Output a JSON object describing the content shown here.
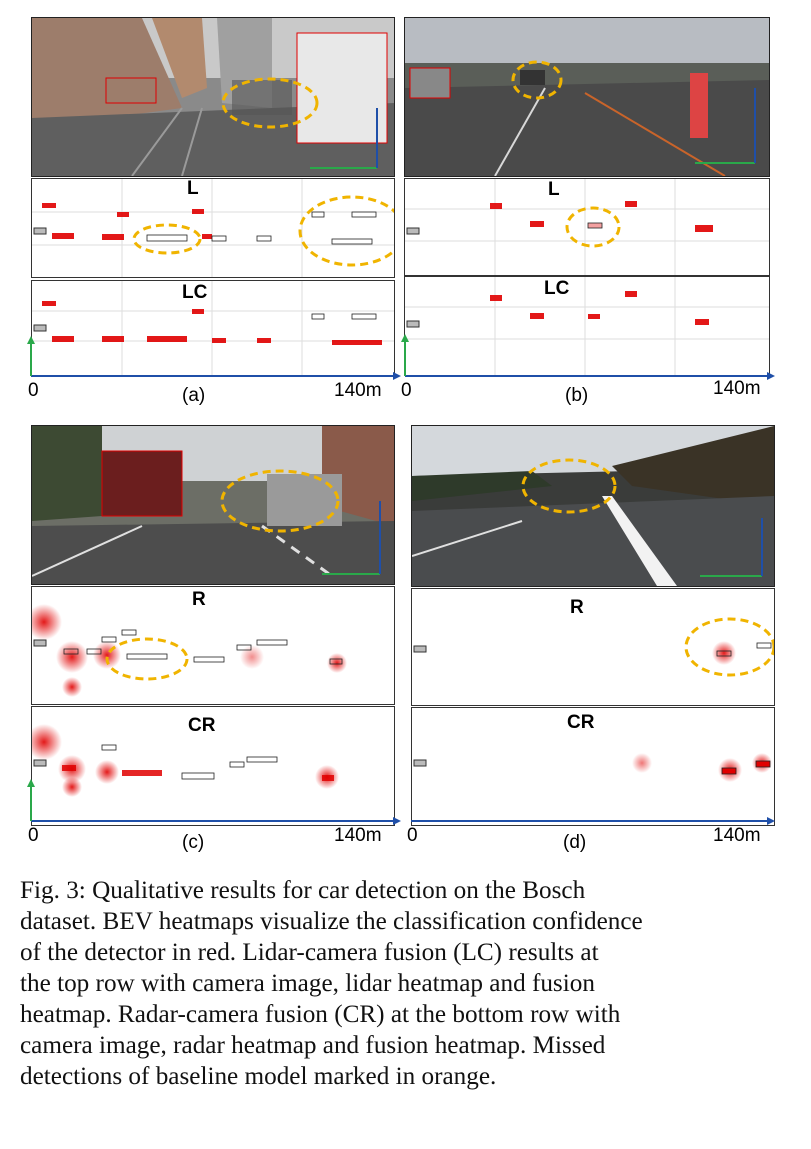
{
  "panels": [
    {
      "id": "a",
      "heat_top_label": "L",
      "heat_bottom_label": "LC",
      "sub_label": "(a)",
      "axis_start": "0",
      "axis_end": "140m"
    },
    {
      "id": "b",
      "heat_top_label": "L",
      "heat_bottom_label": "LC",
      "sub_label": "(b)",
      "axis_start": "0",
      "axis_end": "140m"
    },
    {
      "id": "c",
      "heat_top_label": "R",
      "heat_bottom_label": "CR",
      "sub_label": "(c)",
      "axis_start": "0",
      "axis_end": "140m"
    },
    {
      "id": "d",
      "heat_top_label": "R",
      "heat_bottom_label": "CR",
      "sub_label": "(d)",
      "axis_start": "0",
      "axis_end": "140m"
    }
  ],
  "caption": {
    "lines": [
      "Fig. 3: Qualitative results for car detection on the Bosch",
      "dataset. BEV heatmaps visualize the classification confidence",
      "of the detector in red. Lidar-camera fusion (LC) results at",
      "the top row with camera image, lidar heatmap and fusion",
      "heatmap. Radar-camera fusion (CR) at the bottom row with",
      "camera image, radar heatmap and fusion heatmap. Missed",
      "detections of baseline model marked in orange."
    ]
  },
  "colors": {
    "missed": "#f0b400",
    "detection": "#e00000",
    "axis_x": "#1f4fa8",
    "axis_y": "#2aa84a"
  }
}
